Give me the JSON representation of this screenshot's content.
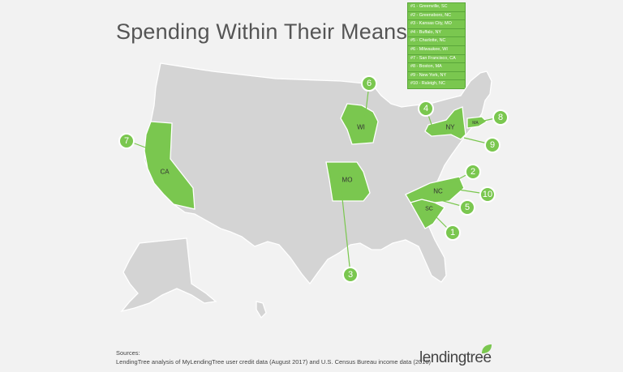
{
  "title": "Spending Within Their Means",
  "legend": [
    "#1 - Greenville, SC",
    "#2 - Greensboro, NC",
    "#3 - Kansas City, MO",
    "#4 - Buffalo, NY",
    "#5 - Charlotte, NC",
    "#6 - Milwaukee, WI",
    "#7 - San Francisco, CA",
    "#8 - Boston, MA",
    "#9 - New York, NY",
    "#10 - Raleigh, NC"
  ],
  "state_labels": {
    "ca": "CA",
    "wi": "WI",
    "mo": "MO",
    "ny": "NY",
    "ma": "MA",
    "nc": "NC",
    "sc": "SC"
  },
  "badges": {
    "b1": "1",
    "b2": "2",
    "b3": "3",
    "b4": "4",
    "b5": "5",
    "b6": "6",
    "b7": "7",
    "b8": "8",
    "b9": "9",
    "b10": "10"
  },
  "sources_heading": "Sources:",
  "sources_text": "LendingTree analysis of MyLendingTree user credit data (August 2017) and U.S. Census Bureau income data (2016)",
  "logo_text": "lendingtree",
  "colors": {
    "highlight": "#7ac74f",
    "base_state": "#d4d4d4",
    "background": "#f2f2f2"
  }
}
